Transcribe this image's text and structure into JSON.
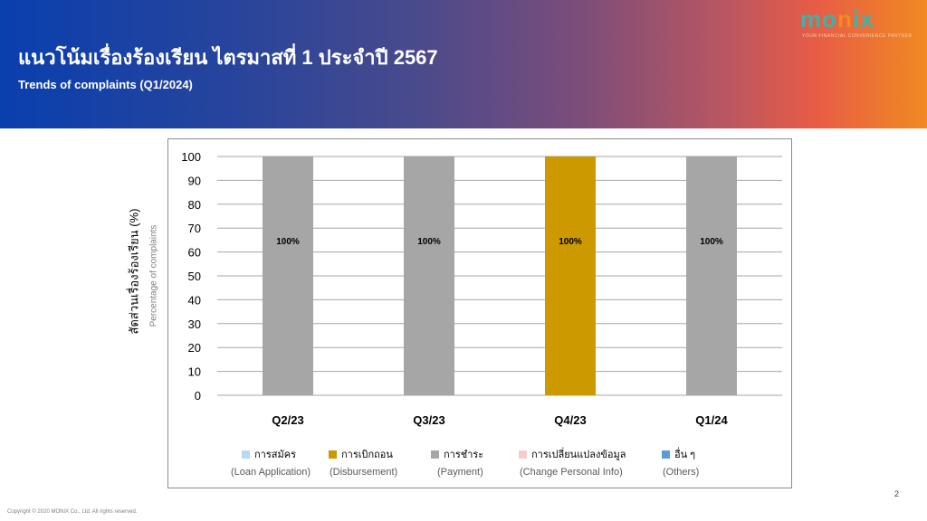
{
  "header": {
    "title": "แนวโน้มเรื่องร้องเรียน ไตรมาสที่ 1 ประจำปี 2567",
    "subtitle": "Trends of complaints (Q1/2024)"
  },
  "logo": {
    "wordmark": "monix",
    "tagline": "YOUR FINANCIAL CONVENIENCE PARTNER"
  },
  "chart_data": {
    "type": "bar",
    "stacked": true,
    "categories": [
      "Q2/23",
      "Q3/23",
      "Q4/23",
      "Q1/24"
    ],
    "ylabel": "สัดส่วนเรื่องร้องเรียน (%)",
    "ylabel_en": "Percentage of complaints",
    "ylim": [
      0,
      100
    ],
    "yticks": [
      0,
      10,
      20,
      30,
      40,
      50,
      60,
      70,
      80,
      90,
      100
    ],
    "grid": true,
    "legend_position": "bottom",
    "series": [
      {
        "name": "การสมัคร",
        "name_en": "(Loan Application)",
        "color": "#bdd7ee",
        "values": [
          0,
          0,
          0,
          0
        ]
      },
      {
        "name": "การเบิกถอน",
        "name_en": "(Disbursement)",
        "color": "#cc9900",
        "values": [
          0,
          0,
          100,
          0
        ]
      },
      {
        "name": "การชำระ",
        "name_en": "(Payment)",
        "color": "#a6a6a6",
        "values": [
          100,
          100,
          0,
          100
        ]
      },
      {
        "name": "การเปลี่ยนแปลงข้อมูล",
        "name_en": "(Change Personal Info)",
        "color": "#f4cccc",
        "values": [
          0,
          0,
          0,
          0
        ]
      },
      {
        "name": "อื่น ๆ",
        "name_en": "(Others)",
        "color": "#5b9bd5",
        "values": [
          0,
          0,
          0,
          0
        ]
      }
    ],
    "data_labels": [
      "100%",
      "100%",
      "100%",
      "100%"
    ]
  },
  "footer": {
    "page_number": "2",
    "copyright": "Copyright © 2020 MONIX Co., Ltd. All rights reserved."
  }
}
